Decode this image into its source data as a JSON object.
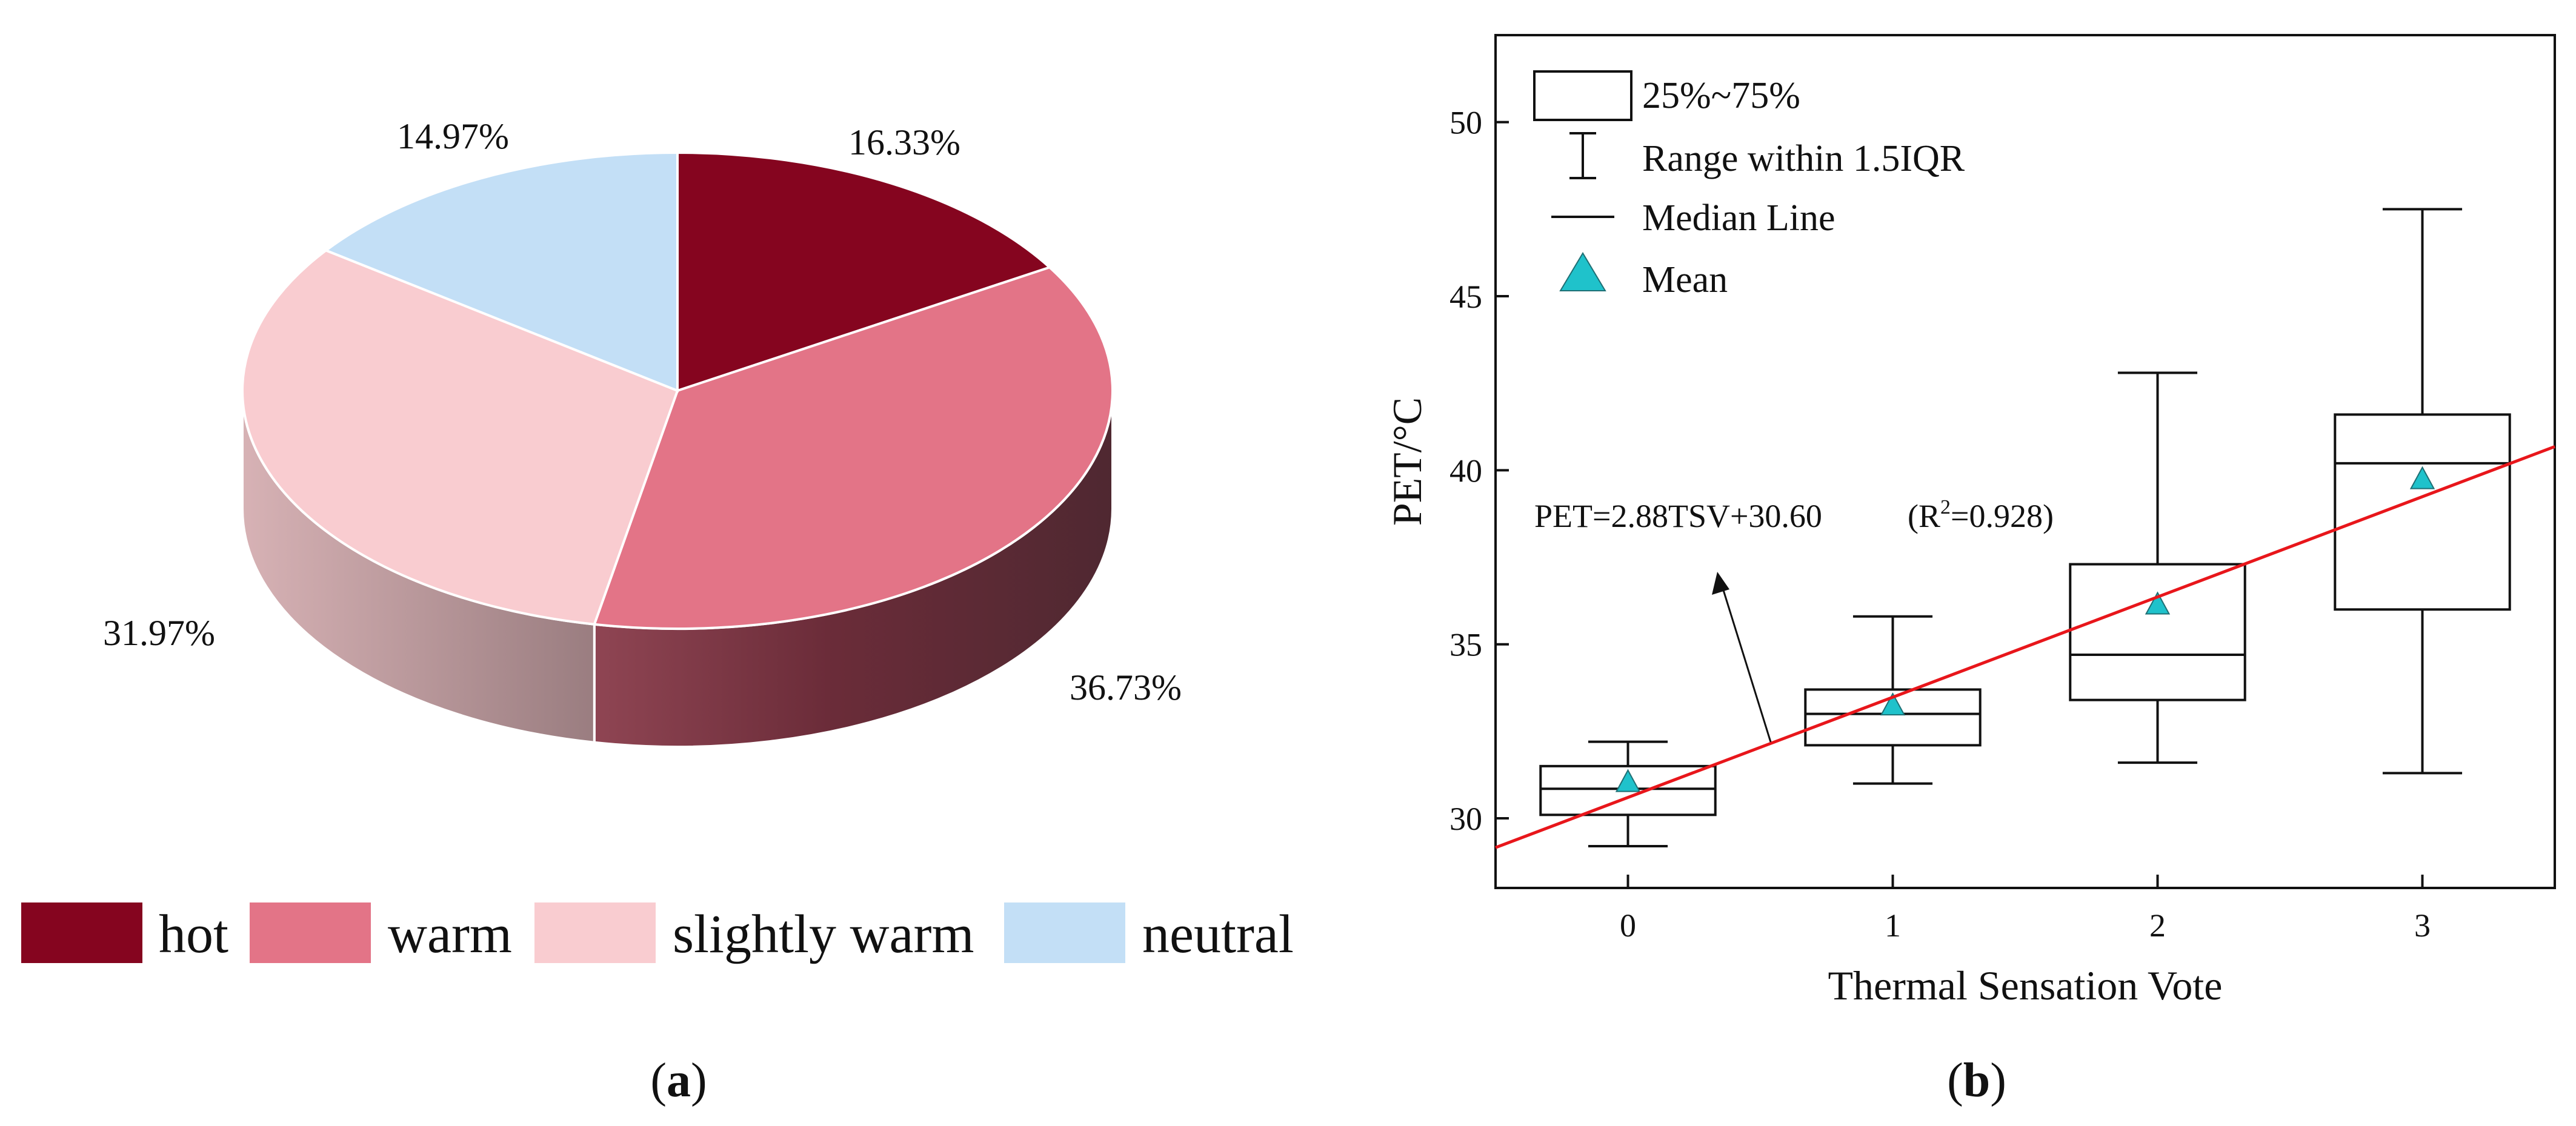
{
  "chart_data": [
    {
      "type": "pie",
      "style": "3d",
      "categories": [
        "hot",
        "warm",
        "slightly warm",
        "neutral"
      ],
      "values": [
        16.33,
        36.73,
        31.97,
        14.97
      ],
      "labels": [
        "16.33%",
        "36.73%",
        "31.97%",
        "14.97%"
      ],
      "colors": [
        "#85051f",
        "#e37487",
        "#f9ccd0",
        "#c3dff6"
      ],
      "legend": "bottom",
      "caption": {
        "open": "(",
        "letter": "a",
        "close": ")"
      }
    },
    {
      "type": "box",
      "xlabel": "Thermal Sensation Vote",
      "ylabel": "PET/°C",
      "categories": [
        "0",
        "1",
        "2",
        "3"
      ],
      "x": [
        0,
        1,
        2,
        3
      ],
      "xlim": [
        -0.5,
        3.5
      ],
      "ylim": [
        28,
        52.5
      ],
      "yticks": [
        30,
        35,
        40,
        45,
        50
      ],
      "boxes": [
        {
          "x": 0,
          "whisker_low": 29.2,
          "q1": 30.1,
          "median": 30.85,
          "q3": 31.5,
          "whisker_high": 32.2,
          "mean": 31.0
        },
        {
          "x": 1,
          "whisker_low": 31.0,
          "q1": 32.1,
          "median": 33.0,
          "q3": 33.7,
          "whisker_high": 35.8,
          "mean": 33.2
        },
        {
          "x": 2,
          "whisker_low": 31.6,
          "q1": 33.4,
          "median": 34.7,
          "q3": 37.3,
          "whisker_high": 42.8,
          "mean": 36.1
        },
        {
          "x": 3,
          "whisker_low": 31.3,
          "q1": 36.0,
          "median": 40.2,
          "q3": 41.6,
          "whisker_high": 47.5,
          "mean": 39.7
        }
      ],
      "regression": {
        "slope": 2.88,
        "intercept": 30.6,
        "color": "#e8161b"
      },
      "annotation": {
        "equation": "PET=2.88TSV+30.60",
        "r2_prefix": "(R",
        "r2_sup": "2",
        "r2_suffix": "=0.928)"
      },
      "mean_marker_color": "#1fc2cb",
      "legend": {
        "position": "top-left",
        "box": "25%~75%",
        "range": "Range within 1.5IQR",
        "median": "Median Line",
        "mean": "Mean"
      },
      "caption": {
        "open": "(",
        "letter": "b",
        "close": ")"
      }
    }
  ]
}
